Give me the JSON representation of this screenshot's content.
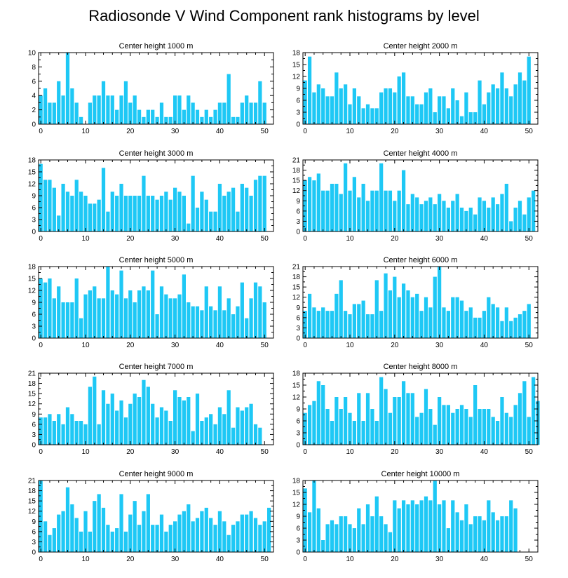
{
  "title": "Radiosonde V Wind Component rank histograms by level",
  "bar_color": "#1ec8f5",
  "chart_data": [
    {
      "type": "bar",
      "title": "Center height 1000 m",
      "ylim": [
        0,
        10
      ],
      "yticks": [
        0,
        2,
        4,
        6,
        8,
        10
      ],
      "xlim": [
        -0.5,
        52
      ],
      "xticks": [
        0,
        10,
        20,
        30,
        40,
        50
      ],
      "values": [
        4,
        5,
        3,
        3,
        6,
        4,
        10,
        5,
        3,
        1,
        0,
        3,
        4,
        4,
        6,
        4,
        4,
        2,
        4,
        6,
        3,
        4,
        2,
        1,
        2,
        2,
        1,
        3,
        1,
        1,
        4,
        4,
        2,
        4,
        3,
        2,
        1,
        2,
        1,
        2,
        3,
        3,
        7,
        1,
        1,
        3,
        4,
        3,
        3,
        6,
        3
      ]
    },
    {
      "type": "bar",
      "title": "Center height 2000 m",
      "ylim": [
        0,
        18
      ],
      "yticks": [
        0,
        3,
        6,
        9,
        12,
        15,
        18
      ],
      "xlim": [
        -0.5,
        52
      ],
      "xticks": [
        0,
        10,
        20,
        30,
        40,
        50
      ],
      "values": [
        11,
        17,
        8,
        10,
        9,
        7,
        7,
        13,
        9,
        10,
        5,
        9,
        7,
        4,
        5,
        4,
        4,
        8,
        9,
        9,
        8,
        12,
        13,
        7,
        7,
        5,
        5,
        8,
        9,
        3,
        7,
        7,
        4,
        9,
        6,
        2,
        8,
        3,
        3,
        11,
        5,
        8,
        10,
        9,
        13,
        9,
        7,
        10,
        13,
        11,
        17
      ]
    },
    {
      "type": "bar",
      "title": "Center height 3000 m",
      "ylim": [
        0,
        18
      ],
      "yticks": [
        0,
        3,
        6,
        9,
        12,
        15,
        18
      ],
      "xlim": [
        -0.5,
        52
      ],
      "xticks": [
        0,
        10,
        20,
        30,
        40,
        50
      ],
      "values": [
        17,
        13,
        13,
        11,
        4,
        12,
        10,
        9,
        13,
        10,
        9,
        7,
        7,
        8,
        16,
        5,
        10,
        9,
        12,
        9,
        9,
        9,
        9,
        14,
        9,
        9,
        8,
        9,
        10,
        8,
        11,
        10,
        9,
        2,
        14,
        6,
        10,
        8,
        5,
        5,
        12,
        9,
        10,
        11,
        5,
        12,
        11,
        9,
        13,
        14,
        14
      ]
    },
    {
      "type": "bar",
      "title": "Center height 4000 m",
      "ylim": [
        0,
        21
      ],
      "yticks": [
        0,
        3,
        6,
        9,
        12,
        15,
        18,
        21
      ],
      "xlim": [
        -0.5,
        52
      ],
      "xticks": [
        0,
        10,
        20,
        30,
        40,
        50
      ],
      "values": [
        15,
        16,
        15,
        17,
        12,
        12,
        14,
        14,
        11,
        20,
        12,
        16,
        10,
        14,
        9,
        12,
        12,
        20,
        12,
        12,
        9,
        12,
        18,
        8,
        11,
        10,
        8,
        9,
        10,
        8,
        11,
        9,
        7,
        9,
        11,
        7,
        6,
        7,
        5,
        10,
        9,
        7,
        10,
        8,
        11,
        14,
        3,
        7,
        9,
        5,
        10,
        12
      ]
    },
    {
      "type": "bar",
      "title": "Center height 5000 m",
      "ylim": [
        0,
        18
      ],
      "yticks": [
        0,
        3,
        6,
        9,
        12,
        15,
        18
      ],
      "xlim": [
        -0.5,
        52
      ],
      "xticks": [
        0,
        10,
        20,
        30,
        40,
        50
      ],
      "values": [
        15,
        14,
        15,
        10,
        13,
        9,
        9,
        9,
        15,
        5,
        11,
        12,
        13,
        10,
        10,
        18,
        12,
        11,
        17,
        10,
        12,
        9,
        12,
        13,
        12,
        17,
        6,
        13,
        11,
        10,
        10,
        11,
        16,
        9,
        8,
        8,
        7,
        13,
        8,
        7,
        13,
        7,
        10,
        6,
        8,
        14,
        5,
        10,
        14,
        13,
        9
      ]
    },
    {
      "type": "bar",
      "title": "Center height 6000 m",
      "ylim": [
        0,
        21
      ],
      "yticks": [
        0,
        3,
        6,
        9,
        12,
        15,
        18,
        21
      ],
      "xlim": [
        -0.5,
        52
      ],
      "xticks": [
        0,
        10,
        20,
        30,
        40,
        50
      ],
      "values": [
        8,
        13,
        9,
        8,
        9,
        8,
        8,
        13,
        17,
        8,
        7,
        10,
        10,
        11,
        7,
        7,
        17,
        8,
        19,
        14,
        18,
        12,
        16,
        14,
        12,
        13,
        8,
        12,
        9,
        18,
        21,
        9,
        8,
        12,
        12,
        11,
        8,
        9,
        6,
        6,
        8,
        12,
        10,
        9,
        5,
        9,
        5,
        6,
        7,
        8,
        10
      ]
    },
    {
      "type": "bar",
      "title": "Center height 7000 m",
      "ylim": [
        0,
        21
      ],
      "yticks": [
        0,
        3,
        6,
        9,
        12,
        15,
        18,
        21
      ],
      "xlim": [
        -0.5,
        52
      ],
      "xticks": [
        0,
        10,
        20,
        30,
        40,
        50
      ],
      "values": [
        8,
        8,
        9,
        7,
        9,
        6,
        11,
        9,
        7,
        7,
        6,
        17,
        20,
        6,
        16,
        12,
        15,
        10,
        13,
        8,
        12,
        15,
        14,
        19,
        17,
        12,
        8,
        11,
        10,
        7,
        16,
        14,
        13,
        14,
        4,
        15,
        7,
        8,
        9,
        6,
        11,
        9,
        16,
        5,
        11,
        10,
        11,
        12,
        6,
        5
      ]
    },
    {
      "type": "bar",
      "title": "Center height 8000 m",
      "ylim": [
        0,
        18
      ],
      "yticks": [
        0,
        3,
        6,
        9,
        12,
        15,
        18
      ],
      "xlim": [
        -0.5,
        52
      ],
      "xticks": [
        0,
        10,
        20,
        30,
        40,
        50
      ],
      "values": [
        8,
        10,
        11,
        16,
        15,
        9,
        6,
        12,
        9,
        12,
        8,
        6,
        13,
        6,
        13,
        9,
        6,
        17,
        14,
        8,
        12,
        12,
        16,
        13,
        13,
        7,
        8,
        14,
        9,
        5,
        12,
        10,
        10,
        8,
        9,
        10,
        9,
        7,
        15,
        9,
        9,
        9,
        7,
        6,
        12,
        8,
        7,
        10,
        13,
        16,
        7,
        17,
        11
      ]
    },
    {
      "type": "bar",
      "title": "Center height 9000 m",
      "ylim": [
        0,
        21
      ],
      "yticks": [
        0,
        3,
        6,
        9,
        12,
        15,
        18,
        21
      ],
      "xlim": [
        -0.5,
        52
      ],
      "xticks": [
        0,
        10,
        20,
        30,
        40,
        50
      ],
      "values": [
        21,
        9,
        5,
        7,
        11,
        12,
        19,
        14,
        10,
        6,
        12,
        6,
        15,
        17,
        13,
        8,
        6,
        7,
        17,
        6,
        11,
        15,
        8,
        12,
        17,
        8,
        8,
        11,
        6,
        8,
        9,
        11,
        12,
        14,
        9,
        10,
        12,
        13,
        10,
        8,
        12,
        9,
        5,
        8,
        9,
        11,
        11,
        12,
        10,
        8,
        9,
        13
      ]
    },
    {
      "type": "bar",
      "title": "Center height 10000 m",
      "ylim": [
        0,
        18
      ],
      "yticks": [
        0,
        3,
        6,
        9,
        12,
        15,
        18
      ],
      "xlim": [
        -0.5,
        52
      ],
      "xticks": [
        0,
        10,
        20,
        30,
        40,
        50
      ],
      "values": [
        16,
        10,
        18,
        11,
        3,
        7,
        8,
        7,
        9,
        9,
        7,
        6,
        11,
        7,
        12,
        9,
        14,
        9,
        7,
        5,
        13,
        11,
        13,
        12,
        13,
        12,
        13,
        14,
        13,
        18,
        12,
        13,
        6,
        13,
        10,
        8,
        12,
        7,
        9,
        9,
        8,
        13,
        10,
        8,
        9,
        9,
        13,
        11
      ]
    }
  ]
}
